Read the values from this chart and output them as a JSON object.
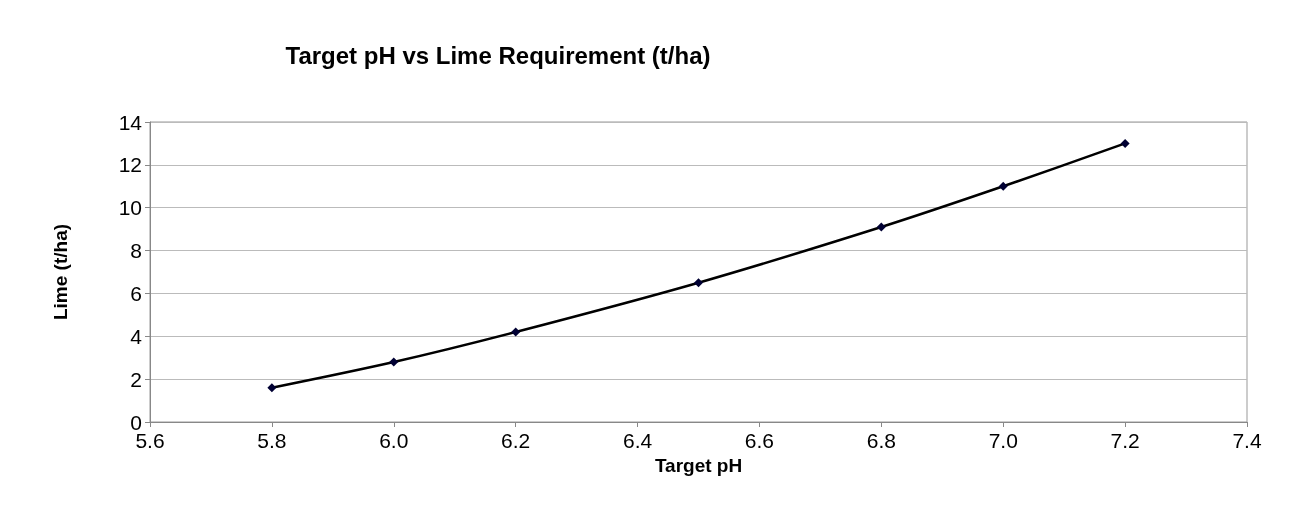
{
  "chart_data": {
    "type": "line",
    "title": "Target pH vs Lime Requirement (t/ha)",
    "xlabel": "Target pH",
    "ylabel": "Lime (t/ha)",
    "x": [
      5.8,
      6.0,
      6.2,
      6.5,
      6.8,
      7.0,
      7.2
    ],
    "series": [
      {
        "color": "#000033",
        "values": [
          1.6,
          2.8,
          4.2,
          6.5,
          9.1,
          11,
          13
        ]
      }
    ],
    "xlim": [
      5.6,
      7.4
    ],
    "xticks": [
      {
        "value": 5.6,
        "label": "5.6"
      },
      {
        "value": 5.8,
        "label": "5.8"
      },
      {
        "value": 6.0,
        "label": "6.0"
      },
      {
        "value": 6.2,
        "label": "6.2"
      },
      {
        "value": 6.4,
        "label": "6.4"
      },
      {
        "value": 6.6,
        "label": "6.6"
      },
      {
        "value": 6.8,
        "label": "6.8"
      },
      {
        "value": 7.0,
        "label": "7.0"
      },
      {
        "value": 7.2,
        "label": "7.2"
      },
      {
        "value": 7.4,
        "label": "7.4"
      }
    ],
    "ylim": [
      0,
      14
    ],
    "yticks": [
      0,
      2,
      4,
      6,
      8,
      10,
      12,
      14
    ],
    "grid": "y",
    "marker": "diamond",
    "line_style": "solid"
  }
}
